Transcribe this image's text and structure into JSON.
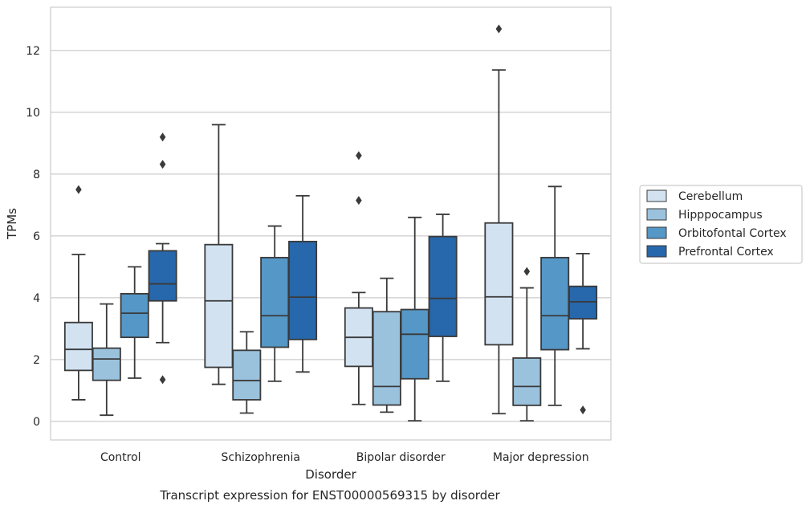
{
  "chart_data": {
    "type": "box",
    "caption": "Transcript expression for ENST00000569315 by disorder",
    "xlabel": "Disorder",
    "ylabel": "TPMs",
    "ylim": [
      -0.6,
      13.4
    ],
    "yticks": [
      0,
      2,
      4,
      6,
      8,
      10,
      12
    ],
    "grid": "horizontal",
    "legend_position": "right",
    "categories": [
      "Control",
      "Schizophrenia",
      "Bipolar disorder",
      "Major depression"
    ],
    "series": [
      {
        "name": "Cerebellum",
        "color": "#d2e2f1",
        "boxes": [
          {
            "whisker_low": 0.7,
            "q1": 1.65,
            "median": 2.33,
            "q3": 3.2,
            "whisker_high": 5.4,
            "outliers": [
              7.5
            ]
          },
          {
            "whisker_low": 1.2,
            "q1": 1.75,
            "median": 3.9,
            "q3": 5.72,
            "whisker_high": 9.6,
            "outliers": []
          },
          {
            "whisker_low": 0.55,
            "q1": 1.78,
            "median": 2.72,
            "q3": 3.67,
            "whisker_high": 4.17,
            "outliers": [
              7.15,
              8.6
            ]
          },
          {
            "whisker_low": 0.25,
            "q1": 2.48,
            "median": 4.03,
            "q3": 6.42,
            "whisker_high": 11.37,
            "outliers": [
              12.7
            ]
          }
        ]
      },
      {
        "name": "Hipppocampus",
        "color": "#9ac2dd",
        "boxes": [
          {
            "whisker_low": 0.2,
            "q1": 1.33,
            "median": 2.02,
            "q3": 2.37,
            "whisker_high": 3.8,
            "outliers": []
          },
          {
            "whisker_low": 0.27,
            "q1": 0.7,
            "median": 1.32,
            "q3": 2.3,
            "whisker_high": 2.9,
            "outliers": []
          },
          {
            "whisker_low": 0.3,
            "q1": 0.53,
            "median": 1.13,
            "q3": 3.55,
            "whisker_high": 4.63,
            "outliers": []
          },
          {
            "whisker_low": 0.02,
            "q1": 0.52,
            "median": 1.13,
            "q3": 2.05,
            "whisker_high": 4.32,
            "outliers": [
              4.85
            ]
          }
        ]
      },
      {
        "name": "Orbitofontal Cortex",
        "color": "#5597c6",
        "boxes": [
          {
            "whisker_low": 1.4,
            "q1": 2.72,
            "median": 3.5,
            "q3": 4.13,
            "whisker_high": 5.0,
            "outliers": []
          },
          {
            "whisker_low": 1.3,
            "q1": 2.4,
            "median": 3.42,
            "q3": 5.3,
            "whisker_high": 6.32,
            "outliers": []
          },
          {
            "whisker_low": 0.02,
            "q1": 1.38,
            "median": 2.82,
            "q3": 3.62,
            "whisker_high": 6.6,
            "outliers": []
          },
          {
            "whisker_low": 0.52,
            "q1": 2.32,
            "median": 3.42,
            "q3": 5.3,
            "whisker_high": 7.6,
            "outliers": []
          }
        ]
      },
      {
        "name": "Prefrontal Cortex",
        "color": "#2767ab",
        "boxes": [
          {
            "whisker_low": 2.55,
            "q1": 3.9,
            "median": 4.45,
            "q3": 5.52,
            "whisker_high": 5.75,
            "outliers": [
              1.35,
              8.32,
              9.2
            ]
          },
          {
            "whisker_low": 1.6,
            "q1": 2.65,
            "median": 4.02,
            "q3": 5.82,
            "whisker_high": 7.3,
            "outliers": []
          },
          {
            "whisker_low": 1.3,
            "q1": 2.75,
            "median": 3.98,
            "q3": 5.98,
            "whisker_high": 6.7,
            "outliers": []
          },
          {
            "whisker_low": 2.35,
            "q1": 3.32,
            "median": 3.87,
            "q3": 4.37,
            "whisker_high": 5.43,
            "outliers": [
              0.37
            ]
          }
        ]
      }
    ]
  }
}
